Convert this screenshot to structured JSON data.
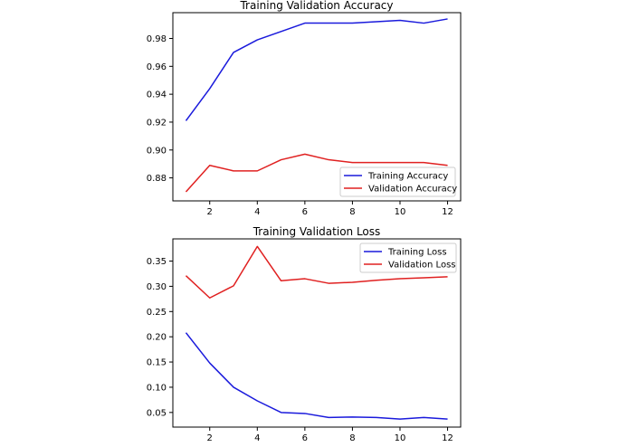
{
  "chart_data": [
    {
      "type": "line",
      "title": "Training Validation Accuracy",
      "xlabel": "",
      "ylabel": "",
      "x": [
        1,
        2,
        3,
        4,
        5,
        6,
        7,
        8,
        9,
        10,
        11,
        12
      ],
      "xticks": [
        2,
        4,
        6,
        8,
        10,
        12
      ],
      "xlim": [
        0.45,
        12.55
      ],
      "ylim": [
        0.8635,
        0.9985
      ],
      "yticks": [
        0.88,
        0.9,
        0.92,
        0.94,
        0.96,
        0.98
      ],
      "ytick_labels": [
        "0.88",
        "0.90",
        "0.92",
        "0.94",
        "0.96",
        "0.98"
      ],
      "grid": false,
      "legend_position": "bottom-right",
      "series": [
        {
          "name": "Training Accuracy",
          "color": "#1a1adc",
          "values": [
            0.921,
            0.944,
            0.97,
            0.979,
            0.985,
            0.991,
            0.991,
            0.991,
            0.992,
            0.993,
            0.991,
            0.994
          ]
        },
        {
          "name": "Validation Accuracy",
          "color": "#e02020",
          "values": [
            0.87,
            0.889,
            0.885,
            0.885,
            0.893,
            0.897,
            0.893,
            0.891,
            0.891,
            0.891,
            0.891,
            0.889
          ]
        }
      ]
    },
    {
      "type": "line",
      "title": "Training Validation Loss",
      "xlabel": "",
      "ylabel": "",
      "x": [
        1,
        2,
        3,
        4,
        5,
        6,
        7,
        8,
        9,
        10,
        11,
        12
      ],
      "xticks": [
        2,
        4,
        6,
        8,
        10,
        12
      ],
      "xlim": [
        0.45,
        12.55
      ],
      "ylim": [
        0.021,
        0.394
      ],
      "yticks": [
        0.05,
        0.1,
        0.15,
        0.2,
        0.25,
        0.3,
        0.35
      ],
      "ytick_labels": [
        "0.05",
        "0.10",
        "0.15",
        "0.20",
        "0.25",
        "0.30",
        "0.35"
      ],
      "grid": false,
      "legend_position": "top-right",
      "series": [
        {
          "name": "Training Loss",
          "color": "#1a1adc",
          "values": [
            0.208,
            0.148,
            0.1,
            0.073,
            0.05,
            0.048,
            0.04,
            0.041,
            0.04,
            0.037,
            0.04,
            0.037
          ]
        },
        {
          "name": "Validation Loss",
          "color": "#e02020",
          "values": [
            0.321,
            0.277,
            0.301,
            0.379,
            0.311,
            0.315,
            0.306,
            0.308,
            0.312,
            0.315,
            0.317,
            0.319
          ]
        }
      ]
    }
  ]
}
